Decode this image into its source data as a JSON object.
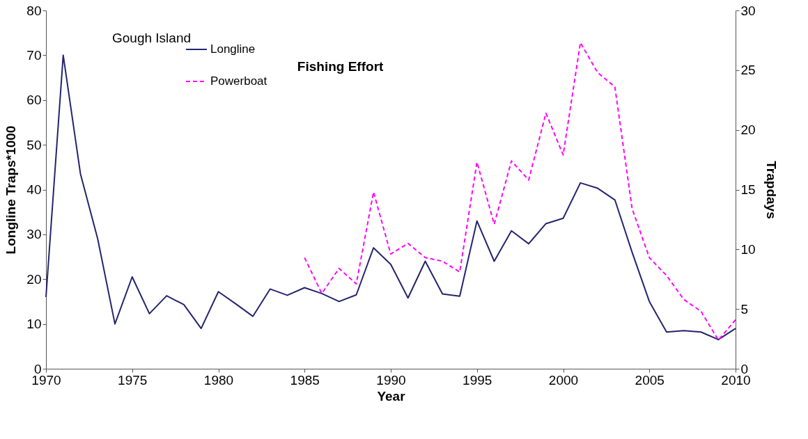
{
  "chart_data": {
    "type": "line",
    "title": "Fishing Effort",
    "xlabel": "Year",
    "ylabel": "Longline Traps*1000",
    "y2label": "Trapdays",
    "annotations": [
      "Gough Island"
    ],
    "x": [
      1970,
      1971,
      1972,
      1973,
      1974,
      1975,
      1976,
      1977,
      1978,
      1979,
      1980,
      1981,
      1982,
      1983,
      1984,
      1985,
      1986,
      1987,
      1988,
      1989,
      1990,
      1991,
      1992,
      1993,
      1994,
      1995,
      1996,
      1997,
      1998,
      1999,
      2000,
      2001,
      2002,
      2003,
      2004,
      2005,
      2006,
      2007,
      2008,
      2009,
      2010
    ],
    "series": [
      {
        "name": "Longline",
        "color": "#24246e",
        "line_style": "solid",
        "values": [
          16,
          70,
          43.5,
          29,
          10,
          20.5,
          12.3,
          16.3,
          14.3,
          9,
          17.2,
          14.5,
          11.7,
          17.8,
          16.4,
          18.1,
          16.8,
          15,
          16.5,
          27,
          23.3,
          15.8,
          24,
          16.7,
          16.2,
          33,
          24,
          30.8,
          27.9,
          32.4,
          33.6,
          41.5,
          40.3,
          37.7,
          26,
          15,
          8.2,
          8.5,
          8.2,
          6.5,
          9
        ]
      },
      {
        "name": "Powerboat",
        "color": "#ff00ff",
        "line_style": "dashed",
        "axis": "y2",
        "x": [
          1985,
          1986,
          1987,
          1988,
          1989,
          1990,
          1991,
          1992,
          1993,
          1994,
          1995,
          1996,
          1997,
          1998,
          1999,
          2000,
          2001,
          2002,
          2003,
          2004,
          2005,
          2006,
          2007,
          2008,
          2009,
          2010
        ],
        "values": [
          9.3,
          6.3,
          8.4,
          7.1,
          14.8,
          9.6,
          10.5,
          9.3,
          9.0,
          8.1,
          17.3,
          12.1,
          17.4,
          15.8,
          21.4,
          17.9,
          27.3,
          24.8,
          23.6,
          13.4,
          9.3,
          7.8,
          5.8,
          4.8,
          2.4,
          4.1
        ]
      }
    ],
    "xlim": [
      1970,
      2010
    ],
    "xticks": [
      1970,
      1975,
      1980,
      1985,
      1990,
      1995,
      2000,
      2005,
      2010
    ],
    "ylim": [
      0,
      80
    ],
    "yticks": [
      0,
      10,
      20,
      30,
      40,
      50,
      60,
      70,
      80
    ],
    "y2lim": [
      0,
      30
    ],
    "y2ticks": [
      0,
      5,
      10,
      15,
      20,
      25,
      30
    ],
    "grid": false,
    "legend": "top left",
    "marker": "none"
  }
}
